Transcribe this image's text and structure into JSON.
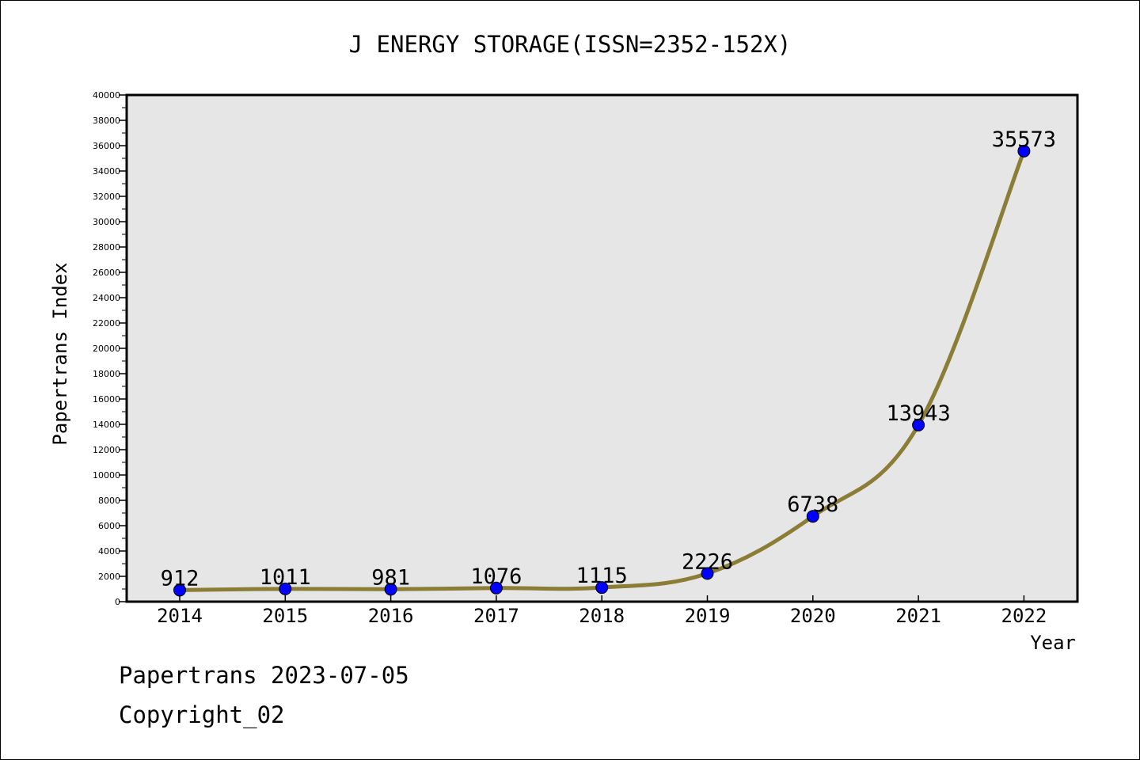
{
  "chart_data": {
    "type": "line",
    "title": "J ENERGY STORAGE(ISSN=2352-152X)",
    "xlabel": "Year",
    "ylabel": "Papertrans Index",
    "categories": [
      "2014",
      "2015",
      "2016",
      "2017",
      "2018",
      "2019",
      "2020",
      "2021",
      "2022"
    ],
    "values": [
      912,
      1011,
      981,
      1076,
      1115,
      2226,
      6738,
      13943,
      35573
    ],
    "data_labels": [
      "912",
      "1011",
      "981",
      "1076",
      "1115",
      "2226",
      "6738",
      "13943",
      "35573"
    ],
    "ylim": [
      0,
      40000
    ],
    "yticks": [
      0,
      2000,
      4000,
      6000,
      8000,
      10000,
      12000,
      14000,
      16000,
      18000,
      20000,
      22000,
      24000,
      26000,
      28000,
      30000,
      32000,
      34000,
      36000,
      38000,
      40000
    ],
    "grid": false,
    "colors": {
      "line": "#8b7d35",
      "marker": "#0000ff",
      "plot_background": "#e6e6e6"
    }
  },
  "footer": {
    "source": "Papertrans 2023-07-05",
    "copyright": "Copyright_02"
  }
}
